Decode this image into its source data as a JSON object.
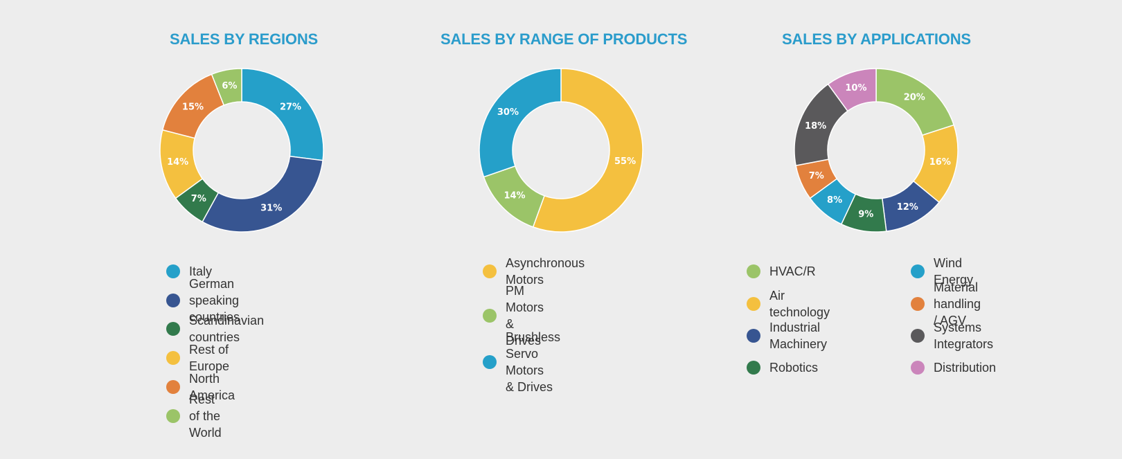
{
  "chart_data": [
    {
      "type": "pie",
      "title": "SALES BY REGIONS",
      "categories": [
        "Italy",
        "German speaking countries",
        "Scandinavian countries",
        "Rest of Europe",
        "North America",
        "Rest of the World"
      ],
      "values": [
        27,
        31,
        7,
        14,
        15,
        6
      ],
      "labels": [
        "27%",
        "31%",
        "7%",
        "14%",
        "15%",
        "6%"
      ],
      "colors": [
        "#25a0c9",
        "#375591",
        "#327a4c",
        "#f4c03f",
        "#e2813d",
        "#9bc468"
      ],
      "hole": "donut",
      "legend": "bottom"
    },
    {
      "type": "pie",
      "title": "SALES BY RANGE OF PRODUCTS",
      "categories": [
        "Asynchronous Motors",
        "PM Motors & Drives",
        "Brushless Servo Motors\n& Drives"
      ],
      "values": [
        55,
        14,
        30
      ],
      "labels": [
        "55%",
        "14%",
        "30%"
      ],
      "colors": [
        "#f4c03f",
        "#9bc468",
        "#25a0c9"
      ],
      "hole": "donut",
      "legend": "bottom"
    },
    {
      "type": "pie",
      "title": "SALES BY APPLICATIONS",
      "categories": [
        "HVAC/R",
        "Air technology",
        "Industrial Machinery",
        "Robotics",
        "Wind Energy",
        "Material handling / AGV",
        "Systems Integrators",
        "Distribution"
      ],
      "values": [
        20,
        16,
        12,
        9,
        8,
        7,
        18,
        10
      ],
      "labels": [
        "20%",
        "16%",
        "12%",
        "9%",
        "8%",
        "7%",
        "18%",
        "10%"
      ],
      "colors": [
        "#9bc468",
        "#f4c03f",
        "#375591",
        "#327a4c",
        "#25a0c9",
        "#e2813d",
        "#5a595b",
        "#cb85bb"
      ],
      "hole": "donut",
      "legend": "bottom"
    }
  ]
}
